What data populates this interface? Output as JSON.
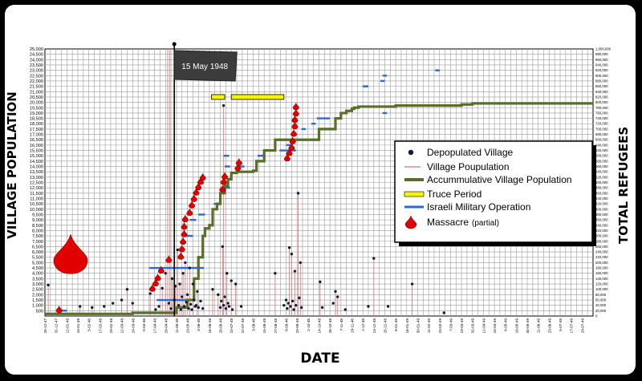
{
  "chart_data": {
    "type": "line",
    "banner": "15 May 1948",
    "xlabel": "DATE",
    "ylabel_left": "VILLAGE      POPULATION",
    "ylabel_right": "TOTAL      REFUGEES",
    "y_left": {
      "min": 0,
      "max": 25000,
      "step": 500
    },
    "y_right": {
      "min": 0,
      "max": 1000000,
      "step": 20000
    },
    "x_ticks": [
      "25-12-47",
      "31-12-47",
      "12-01-48",
      "24-01-48",
      "5-02-48",
      "17-02-48",
      "29-02-48",
      "12-03-48",
      "24-03-48",
      "5-04-48",
      "17-04-48",
      "29-04-48",
      "11-05-48",
      "23-05-48",
      "4-06-48",
      "16-06-48",
      "28-06-48",
      "10-07-48",
      "22-07-48",
      "3-08-48",
      "15-08-48",
      "27-08-48",
      "8-09-48",
      "20-09-48",
      "2-10-48",
      "14-10-48",
      "26-10-48",
      "7-11-48",
      "19-11-48",
      "1-12-48",
      "13-12-48",
      "25-12-48",
      "6-01-49",
      "18-01-49",
      "30-01-49",
      "11-02-49",
      "23-02-49",
      "7-03-49",
      "19-03-49",
      "31-03-49",
      "12-04-49",
      "24-04-49",
      "6-05-49",
      "18-05-49",
      "30-05-49",
      "11-06-49",
      "23-06-49",
      "5-07-49",
      "17-07-49",
      "29-07-49"
    ],
    "legend": [
      {
        "key": "dot",
        "label": "Depopulated Village",
        "color": "#0d1f3a"
      },
      {
        "key": "thin",
        "label": "Village Poupulation",
        "color": "#e07070"
      },
      {
        "key": "thick",
        "label": "Accummulative Village Population",
        "color": "#5a6e2a"
      },
      {
        "key": "truce",
        "label": "Truce Period",
        "color": "#f5f500"
      },
      {
        "key": "op",
        "label": "Israeli Military Operation",
        "color": "#2a6ad6"
      },
      {
        "key": "massacre",
        "label": "Massacre",
        "suffix": "(partial)",
        "color": "#e00000"
      }
    ],
    "series": [
      {
        "name": "Accummulative Village Population",
        "color": "#5a6e2a",
        "x_index": [
          0,
          8,
          12,
          13,
          13.6,
          14,
          14.4,
          14.6,
          15,
          15.3,
          15.7,
          16,
          16.4,
          16.7,
          17,
          17.5,
          18,
          18.6,
          19,
          19.3,
          20,
          21,
          21.8,
          22.3,
          22.8,
          23.2,
          23.8,
          24.5,
          25,
          26.5,
          27,
          27.5,
          28,
          28.2,
          28.6,
          29,
          30,
          32,
          34,
          36,
          38,
          39,
          41,
          42,
          43,
          45,
          48,
          50
        ],
        "values": [
          200,
          300,
          800,
          1500,
          3500,
          5500,
          7500,
          8200,
          8500,
          10000,
          10500,
          11500,
          12200,
          12800,
          13400,
          13500,
          13500,
          13500,
          13600,
          14500,
          15500,
          16500,
          16500,
          16500,
          16500,
          16500,
          16500,
          16500,
          17500,
          18500,
          19000,
          19200,
          19400,
          19500,
          19600,
          19600,
          19600,
          19700,
          19700,
          19700,
          19800,
          19900,
          19900,
          19900,
          19900,
          19900,
          19900,
          19900
        ]
      }
    ],
    "truce_periods": [
      {
        "x_start": 15.2,
        "x_end": 16.4,
        "y": 20500
      },
      {
        "x_start": 17.0,
        "x_end": 21.8,
        "y": 20500
      }
    ],
    "military_operations": [
      {
        "x_start": 9.5,
        "x_end": 14.5,
        "y": 4500
      },
      {
        "x_start": 10.2,
        "x_end": 13.0,
        "y": 1500
      },
      {
        "x_start": 12.5,
        "x_end": 13.5,
        "y": 7500
      },
      {
        "x_start": 13.2,
        "x_end": 13.8,
        "y": 9000
      },
      {
        "x_start": 14.0,
        "x_end": 14.6,
        "y": 9500
      },
      {
        "x_start": 15.4,
        "x_end": 15.9,
        "y": 10500
      },
      {
        "x_start": 16.3,
        "x_end": 16.9,
        "y": 12000
      },
      {
        "x_start": 16.3,
        "x_end": 16.8,
        "y": 12500
      },
      {
        "x_start": 16.4,
        "x_end": 16.9,
        "y": 14000
      },
      {
        "x_start": 16.3,
        "x_end": 16.8,
        "y": 15000
      },
      {
        "x_start": 17.7,
        "x_end": 18.2,
        "y": 14000
      },
      {
        "x_start": 19.4,
        "x_end": 19.9,
        "y": 15000
      },
      {
        "x_start": 21.4,
        "x_end": 22.9,
        "y": 15500
      },
      {
        "x_start": 22.0,
        "x_end": 22.6,
        "y": 16000
      },
      {
        "x_start": 23.4,
        "x_end": 23.8,
        "y": 17500
      },
      {
        "x_start": 24.3,
        "x_end": 24.7,
        "y": 18000
      },
      {
        "x_start": 24.8,
        "x_end": 26.0,
        "y": 18500
      },
      {
        "x_start": 29.0,
        "x_end": 29.5,
        "y": 21500
      },
      {
        "x_start": 30.6,
        "x_end": 31.0,
        "y": 22000
      },
      {
        "x_start": 30.8,
        "x_end": 31.2,
        "y": 22500
      },
      {
        "x_start": 30.8,
        "x_end": 31.2,
        "y": 19000
      },
      {
        "x_start": 35.6,
        "x_end": 36.0,
        "y": 23000
      },
      {
        "x_start": 1.5,
        "x_end": 2.0,
        "y": 500
      }
    ],
    "massacres": [
      {
        "x": 1.3,
        "y": 500
      },
      {
        "x": 9.8,
        "y": 2500
      },
      {
        "x": 10.1,
        "y": 3000
      },
      {
        "x": 10.3,
        "y": 3500
      },
      {
        "x": 10.6,
        "y": 4200
      },
      {
        "x": 11.3,
        "y": 5200
      },
      {
        "x": 12.4,
        "y": 5500
      },
      {
        "x": 12.5,
        "y": 6200
      },
      {
        "x": 12.6,
        "y": 6900
      },
      {
        "x": 12.7,
        "y": 7600
      },
      {
        "x": 12.7,
        "y": 8300
      },
      {
        "x": 12.8,
        "y": 9000
      },
      {
        "x": 13.2,
        "y": 9600
      },
      {
        "x": 13.4,
        "y": 10300
      },
      {
        "x": 13.6,
        "y": 10900
      },
      {
        "x": 13.8,
        "y": 11500
      },
      {
        "x": 14.0,
        "y": 12000
      },
      {
        "x": 14.2,
        "y": 12500
      },
      {
        "x": 14.4,
        "y": 12900
      },
      {
        "x": 16.2,
        "y": 11800
      },
      {
        "x": 16.3,
        "y": 12500
      },
      {
        "x": 16.4,
        "y": 13000
      },
      {
        "x": 17.6,
        "y": 13800
      },
      {
        "x": 17.7,
        "y": 14300
      },
      {
        "x": 22.1,
        "y": 14700
      },
      {
        "x": 22.3,
        "y": 15200
      },
      {
        "x": 22.5,
        "y": 15700
      },
      {
        "x": 22.6,
        "y": 16300
      },
      {
        "x": 22.7,
        "y": 17000
      },
      {
        "x": 22.8,
        "y": 17700
      },
      {
        "x": 22.8,
        "y": 18300
      },
      {
        "x": 22.9,
        "y": 18900
      },
      {
        "x": 22.9,
        "y": 19500
      }
    ],
    "village_population_lines": [
      {
        "x": 0.3,
        "y": 2900
      },
      {
        "x": 1.3,
        "y": 700
      },
      {
        "x": 3.2,
        "y": 900
      },
      {
        "x": 4.3,
        "y": 800
      },
      {
        "x": 7.0,
        "y": 1500
      },
      {
        "x": 7.5,
        "y": 2500
      },
      {
        "x": 8.0,
        "y": 1200
      },
      {
        "x": 9.6,
        "y": 2100
      },
      {
        "x": 10.7,
        "y": 2600
      },
      {
        "x": 11.0,
        "y": 4000
      },
      {
        "x": 11.2,
        "y": 25000
      },
      {
        "x": 11.4,
        "y": 25000
      },
      {
        "x": 11.6,
        "y": 3500
      },
      {
        "x": 11.9,
        "y": 2800
      },
      {
        "x": 12.1,
        "y": 6200
      },
      {
        "x": 12.3,
        "y": 3000
      },
      {
        "x": 12.6,
        "y": 4000
      },
      {
        "x": 12.8,
        "y": 5000
      },
      {
        "x": 13.2,
        "y": 4500
      },
      {
        "x": 13.5,
        "y": 3000
      },
      {
        "x": 13.9,
        "y": 2300
      },
      {
        "x": 15.3,
        "y": 2500
      },
      {
        "x": 15.8,
        "y": 2000
      },
      {
        "x": 16.2,
        "y": 6500
      },
      {
        "x": 16.3,
        "y": 19700
      },
      {
        "x": 16.6,
        "y": 4000
      },
      {
        "x": 17.0,
        "y": 3300
      },
      {
        "x": 17.4,
        "y": 3000
      },
      {
        "x": 21.0,
        "y": 4000
      },
      {
        "x": 22.3,
        "y": 6400
      },
      {
        "x": 22.5,
        "y": 5800
      },
      {
        "x": 22.8,
        "y": 4200
      },
      {
        "x": 23.1,
        "y": 11500
      },
      {
        "x": 23.3,
        "y": 5000
      },
      {
        "x": 25.1,
        "y": 3200
      },
      {
        "x": 26.5,
        "y": 2300
      },
      {
        "x": 26.7,
        "y": 1800
      },
      {
        "x": 30.0,
        "y": 5400
      },
      {
        "x": 33.5,
        "y": 3000
      }
    ],
    "depopulated_villages": [
      {
        "x": 0.3,
        "y": 2900
      },
      {
        "x": 1.3,
        "y": 700
      },
      {
        "x": 3.2,
        "y": 900
      },
      {
        "x": 4.3,
        "y": 800
      },
      {
        "x": 5.4,
        "y": 900
      },
      {
        "x": 6.2,
        "y": 1200
      },
      {
        "x": 7.0,
        "y": 1500
      },
      {
        "x": 7.5,
        "y": 2500
      },
      {
        "x": 8.0,
        "y": 1200
      },
      {
        "x": 9.6,
        "y": 2100
      },
      {
        "x": 10.1,
        "y": 600
      },
      {
        "x": 10.4,
        "y": 900
      },
      {
        "x": 10.7,
        "y": 2600
      },
      {
        "x": 11.0,
        "y": 4000
      },
      {
        "x": 11.3,
        "y": 1200
      },
      {
        "x": 11.5,
        "y": 700
      },
      {
        "x": 11.6,
        "y": 3500
      },
      {
        "x": 11.8,
        "y": 1500
      },
      {
        "x": 11.9,
        "y": 2800
      },
      {
        "x": 12.1,
        "y": 6200
      },
      {
        "x": 12.2,
        "y": 1000
      },
      {
        "x": 12.3,
        "y": 3000
      },
      {
        "x": 12.4,
        "y": 600
      },
      {
        "x": 12.5,
        "y": 1800
      },
      {
        "x": 12.6,
        "y": 4000
      },
      {
        "x": 12.7,
        "y": 900
      },
      {
        "x": 12.8,
        "y": 5000
      },
      {
        "x": 12.9,
        "y": 1300
      },
      {
        "x": 13.0,
        "y": 2000
      },
      {
        "x": 13.1,
        "y": 700
      },
      {
        "x": 13.2,
        "y": 4500
      },
      {
        "x": 13.3,
        "y": 1100
      },
      {
        "x": 13.4,
        "y": 600
      },
      {
        "x": 13.5,
        "y": 3000
      },
      {
        "x": 13.6,
        "y": 1500
      },
      {
        "x": 13.7,
        "y": 900
      },
      {
        "x": 13.8,
        "y": 1000
      },
      {
        "x": 13.9,
        "y": 2300
      },
      {
        "x": 14.0,
        "y": 800
      },
      {
        "x": 14.2,
        "y": 1400
      },
      {
        "x": 14.4,
        "y": 700
      },
      {
        "x": 15.3,
        "y": 2500
      },
      {
        "x": 15.8,
        "y": 2000
      },
      {
        "x": 16.0,
        "y": 800
      },
      {
        "x": 16.1,
        "y": 1400
      },
      {
        "x": 16.2,
        "y": 6500
      },
      {
        "x": 16.3,
        "y": 19700
      },
      {
        "x": 16.3,
        "y": 1000
      },
      {
        "x": 16.4,
        "y": 1800
      },
      {
        "x": 16.5,
        "y": 700
      },
      {
        "x": 16.6,
        "y": 4000
      },
      {
        "x": 16.7,
        "y": 1200
      },
      {
        "x": 16.8,
        "y": 900
      },
      {
        "x": 17.0,
        "y": 3300
      },
      {
        "x": 17.1,
        "y": 600
      },
      {
        "x": 17.4,
        "y": 3000
      },
      {
        "x": 17.9,
        "y": 900
      },
      {
        "x": 21.0,
        "y": 4000
      },
      {
        "x": 21.8,
        "y": 1000
      },
      {
        "x": 22.0,
        "y": 1500
      },
      {
        "x": 22.1,
        "y": 700
      },
      {
        "x": 22.2,
        "y": 1200
      },
      {
        "x": 22.3,
        "y": 6400
      },
      {
        "x": 22.4,
        "y": 900
      },
      {
        "x": 22.5,
        "y": 5800
      },
      {
        "x": 22.6,
        "y": 1400
      },
      {
        "x": 22.7,
        "y": 600
      },
      {
        "x": 22.8,
        "y": 4200
      },
      {
        "x": 22.9,
        "y": 1000
      },
      {
        "x": 23.1,
        "y": 11500
      },
      {
        "x": 23.2,
        "y": 1700
      },
      {
        "x": 23.3,
        "y": 5000
      },
      {
        "x": 23.4,
        "y": 800
      },
      {
        "x": 25.1,
        "y": 3200
      },
      {
        "x": 25.3,
        "y": 800
      },
      {
        "x": 26.3,
        "y": 1200
      },
      {
        "x": 26.5,
        "y": 2300
      },
      {
        "x": 26.7,
        "y": 1800
      },
      {
        "x": 27.4,
        "y": 600
      },
      {
        "x": 29.5,
        "y": 900
      },
      {
        "x": 30.0,
        "y": 5400
      },
      {
        "x": 31.3,
        "y": 900
      },
      {
        "x": 33.5,
        "y": 3000
      },
      {
        "x": 36.4,
        "y": 300
      }
    ],
    "banner_x": 11.8,
    "grid": true
  }
}
